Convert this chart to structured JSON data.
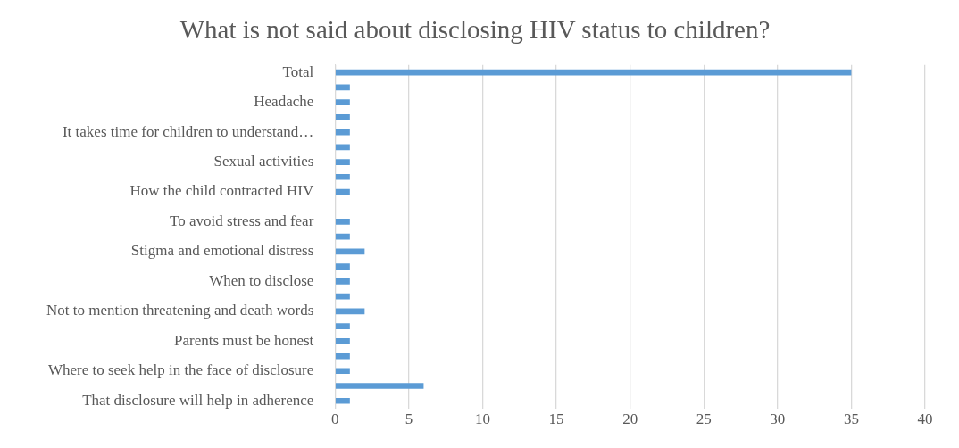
{
  "chart_data": {
    "type": "bar",
    "orientation": "horizontal",
    "title": "What is not said about disclosing HIV status to children?",
    "categories": [
      "Total",
      null,
      "Headache",
      null,
      "It takes time for children to understand…",
      null,
      "Sexual activities",
      null,
      "How the child contracted HIV",
      null,
      "To avoid stress and fear",
      null,
      "Stigma and emotional distress",
      null,
      "When to disclose",
      null,
      "Not to mention threatening and death words",
      null,
      "Parents must be honest",
      null,
      "Where to seek help in the face of disclosure",
      null,
      "That disclosure will help in adherence"
    ],
    "values": [
      35,
      1,
      1,
      1,
      1,
      1,
      1,
      1,
      1,
      0,
      1,
      1,
      2,
      1,
      1,
      1,
      2,
      1,
      1,
      1,
      1,
      6,
      1
    ],
    "color": "#5b9bd5",
    "xlim": [
      0,
      40
    ],
    "xticks": [
      0,
      5,
      10,
      15,
      20,
      25,
      30,
      35,
      40
    ],
    "grid": "x",
    "legend": false
  }
}
